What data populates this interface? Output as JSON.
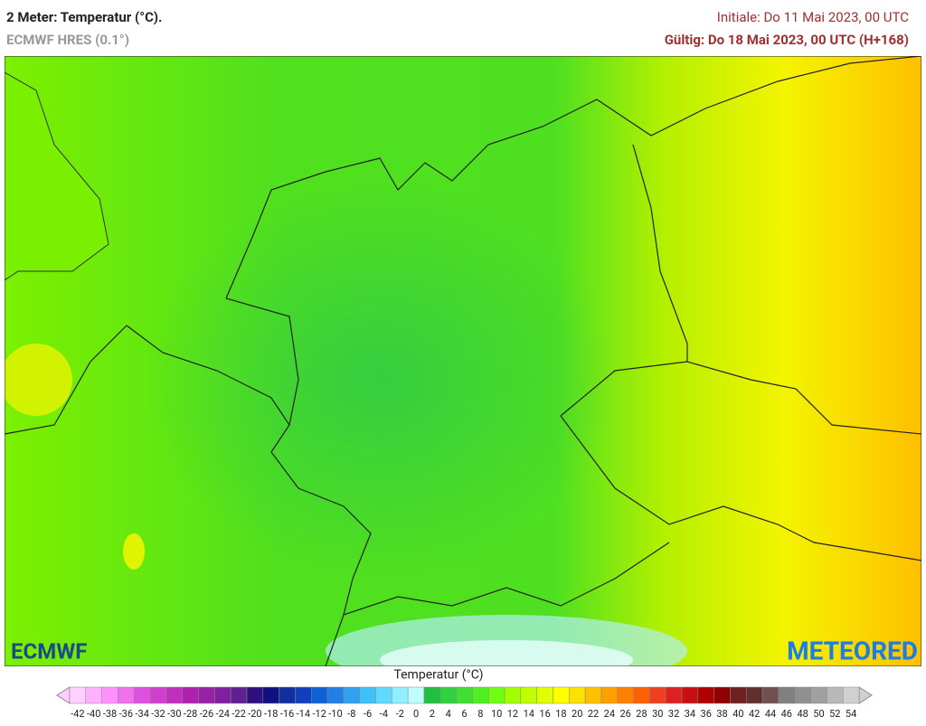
{
  "header": {
    "title": "2 Meter: Temperatur (°C).",
    "model": "ECMWF HRES (0.1°)",
    "init": "Initiale: Do 11 Mai 2023, 00 UTC",
    "valid": "Gültig: Do 18 Mai 2023, 00 UTC (H+168)"
  },
  "logos": {
    "left": "ECMWF",
    "right": "METEORED"
  },
  "legend": {
    "title": "Temperatur (°C)",
    "labels": [
      -42,
      -40,
      -38,
      -36,
      -34,
      -32,
      -30,
      -28,
      -26,
      -24,
      -22,
      -20,
      -18,
      -16,
      -14,
      -12,
      -10,
      -8,
      -6,
      -4,
      -2,
      0,
      2,
      4,
      6,
      8,
      10,
      12,
      14,
      16,
      18,
      20,
      22,
      24,
      26,
      28,
      30,
      32,
      34,
      36,
      38,
      40,
      42,
      44,
      46,
      48,
      50,
      52,
      54
    ],
    "colors": [
      "#ffd0ff",
      "#ffb0ff",
      "#ff90ff",
      "#f070f0",
      "#e050e0",
      "#d040d0",
      "#c030c0",
      "#b020b0",
      "#9a20a8",
      "#8020a0",
      "#602090",
      "#301080",
      "#101080",
      "#1030a0",
      "#1040c0",
      "#1060d8",
      "#2080e8",
      "#30a0f0",
      "#40c0f8",
      "#60d8ff",
      "#90f0ff",
      "#c0ffff",
      "#20c040",
      "#30d040",
      "#40e030",
      "#50f020",
      "#70ff10",
      "#a0ff00",
      "#c0ff00",
      "#e0ff00",
      "#ffff00",
      "#ffe000",
      "#ffc000",
      "#ffa000",
      "#ff8000",
      "#ff6000",
      "#f04020",
      "#e02020",
      "#c81010",
      "#b00000",
      "#900000",
      "#702020",
      "#603030",
      "#705050",
      "#808080",
      "#909090",
      "#a0a0a0",
      "#b8b8b8",
      "#d0d0d0"
    ]
  }
}
